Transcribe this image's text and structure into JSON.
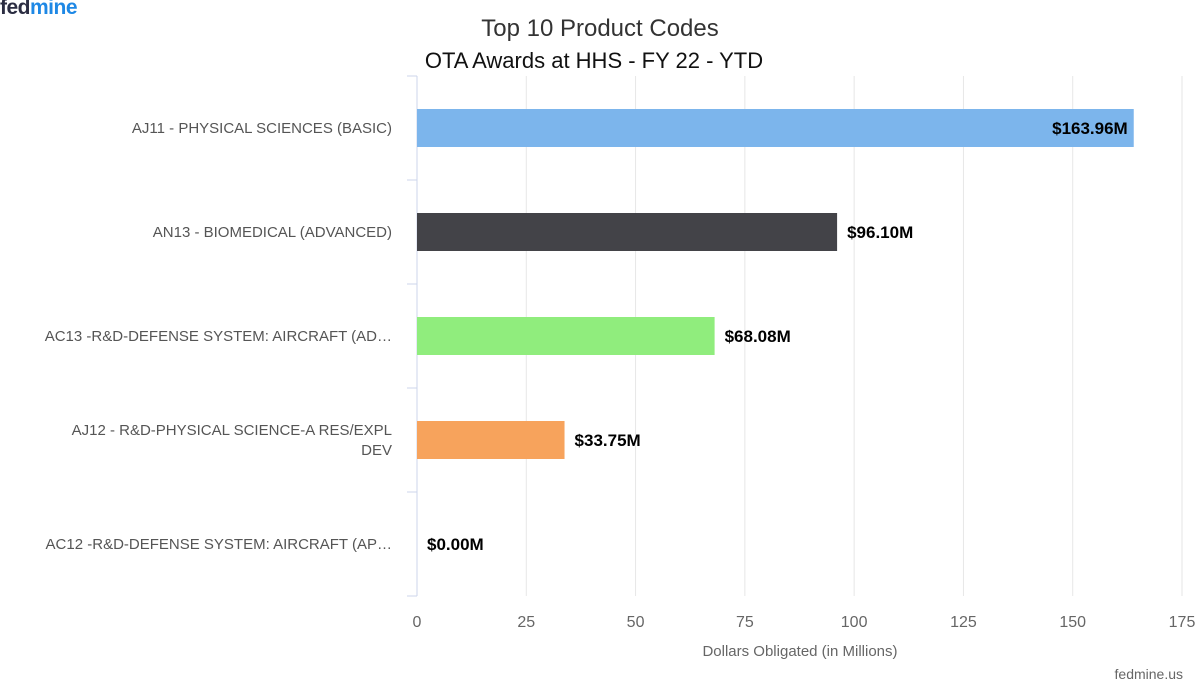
{
  "logo": {
    "part1": "fed",
    "part2": "mine"
  },
  "credit": "fedmine.us",
  "chart_data": {
    "type": "bar",
    "orientation": "horizontal",
    "title": "Top 10 Product Codes",
    "subtitle": "OTA Awards at HHS - FY 22 - YTD",
    "xlabel": "Dollars Obligated (in Millions)",
    "xlim": [
      0,
      175
    ],
    "xticks": [
      0,
      25,
      50,
      75,
      100,
      125,
      150,
      175
    ],
    "grid": true,
    "categories": [
      [
        "AJ11 - PHYSICAL SCIENCES (BASIC)"
      ],
      [
        "AN13 - BIOMEDICAL (ADVANCED)"
      ],
      [
        "AC13 -R&D-DEFENSE SYSTEM: AIRCRAFT (AD…"
      ],
      [
        "AJ12 - R&D-PHYSICAL SCIENCE-A RES/EXPL",
        "DEV"
      ],
      [
        "AC12 -R&D-DEFENSE SYSTEM: AIRCRAFT (AP…"
      ]
    ],
    "values": [
      163.96,
      96.1,
      68.08,
      33.75,
      0.0
    ],
    "data_labels": [
      "$163.96M",
      "$96.10M",
      "$68.08M",
      "$33.75M",
      "$0.00M"
    ],
    "colors": [
      "#7cb5ec",
      "#434348",
      "#90ed7d",
      "#f7a35c",
      "#8085e9"
    ]
  }
}
